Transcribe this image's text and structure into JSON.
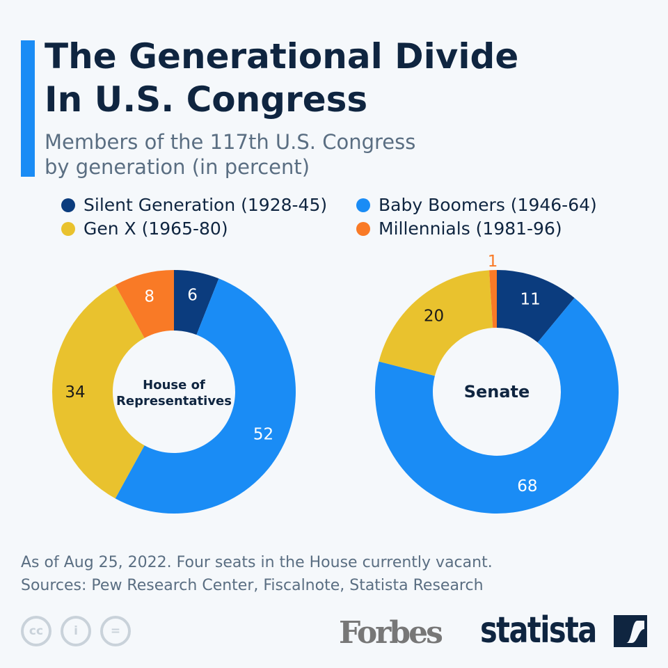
{
  "header": {
    "title_line1": "The Generational Divide",
    "title_line2": "In U.S. Congress",
    "subtitle_line1": "Members of the 117th U.S. Congress",
    "subtitle_line2": "by generation (in percent)"
  },
  "chart_data": {
    "type": "pie",
    "donut": true,
    "title": "The Generational Divide In U.S. Congress",
    "categories": [
      "Silent Generation (1928-45)",
      "Baby Boomers (1946-64)",
      "Gen X (1965-80)",
      "Millennials (1981-96)"
    ],
    "colors": [
      "#0b3c7e",
      "#1a8cf5",
      "#e9c22e",
      "#f97a26"
    ],
    "charts": [
      {
        "name": "House of Representatives",
        "label_line1": "House of",
        "label_line2": "Representatives",
        "values": [
          6,
          52,
          34,
          8
        ]
      },
      {
        "name": "Senate",
        "label_line1": "Senate",
        "label_line2": "",
        "values": [
          11,
          68,
          20,
          1
        ]
      }
    ],
    "legend_placement": "top"
  },
  "footer": {
    "note": "As of Aug 25, 2022. Four seats in the House currently vacant.",
    "sources": "Sources: Pew Research Center, Fiscalnote, Statista Research",
    "license_icons": [
      "cc",
      "i",
      "="
    ],
    "forbes": "Forbes",
    "statista": "statista"
  }
}
